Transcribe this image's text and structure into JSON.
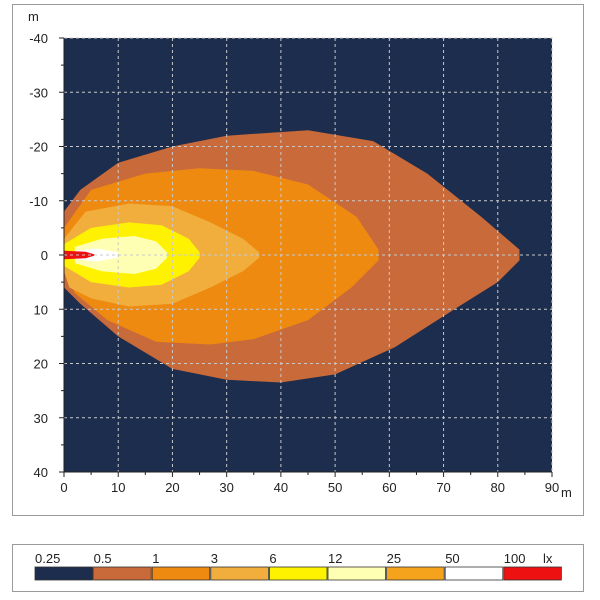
{
  "chart_data": {
    "type": "heatmap",
    "xlabel": "m",
    "ylabel": "m",
    "xlim": [
      0,
      90
    ],
    "ylim": [
      -40,
      40
    ],
    "x_ticks": [
      "0",
      "10",
      "20",
      "30",
      "40",
      "50",
      "60",
      "70",
      "80",
      "90"
    ],
    "y_ticks": [
      "-40",
      "-30",
      "-20",
      "-10",
      "0",
      "10",
      "20",
      "30",
      "40"
    ],
    "grid": true,
    "background_color": "#1c2d4d",
    "levels": [
      {
        "label": "0.25",
        "color": "#1c2d4d"
      },
      {
        "label": "0.5",
        "color": "#c96a3a"
      },
      {
        "label": "1",
        "color": "#ee8a10"
      },
      {
        "label": "3",
        "color": "#f1ae3c"
      },
      {
        "label": "6",
        "color": "#fff200"
      },
      {
        "label": "12",
        "color": "#ffffb4"
      },
      {
        "label": "25",
        "color": "#f5a21c"
      },
      {
        "label": "50",
        "color": "#ffffff"
      },
      {
        "label": "100",
        "color": "#ee1111"
      }
    ],
    "legend_unit": "lx",
    "isolines": [
      {
        "level": "0.5",
        "points": [
          [
            0,
            -8
          ],
          [
            3,
            -12
          ],
          [
            10,
            -17
          ],
          [
            20,
            -20
          ],
          [
            30,
            -22
          ],
          [
            45,
            -23
          ],
          [
            57,
            -21
          ],
          [
            67,
            -15
          ],
          [
            77,
            -7
          ],
          [
            84,
            -1
          ],
          [
            84,
            1
          ],
          [
            80,
            5
          ],
          [
            72,
            10
          ],
          [
            61,
            17
          ],
          [
            50,
            22
          ],
          [
            40,
            23.5
          ],
          [
            30,
            23
          ],
          [
            20,
            21
          ],
          [
            10,
            15
          ],
          [
            3,
            9
          ],
          [
            0,
            6
          ]
        ]
      },
      {
        "level": "1",
        "points": [
          [
            0,
            -5
          ],
          [
            5,
            -12
          ],
          [
            15,
            -15
          ],
          [
            25,
            -16
          ],
          [
            35,
            -15.5
          ],
          [
            45,
            -13
          ],
          [
            54,
            -7
          ],
          [
            58,
            -1
          ],
          [
            58,
            1
          ],
          [
            53,
            6
          ],
          [
            45,
            12
          ],
          [
            35,
            15.5
          ],
          [
            27,
            16.5
          ],
          [
            17,
            16
          ],
          [
            8,
            12
          ],
          [
            2,
            7
          ],
          [
            0,
            3
          ]
        ]
      },
      {
        "level": "3",
        "points": [
          [
            0,
            -3
          ],
          [
            4,
            -8
          ],
          [
            12,
            -9.5
          ],
          [
            20,
            -9
          ],
          [
            27,
            -6
          ],
          [
            33,
            -3
          ],
          [
            36,
            -0.5
          ],
          [
            36,
            0.5
          ],
          [
            33,
            3
          ],
          [
            27,
            6
          ],
          [
            20,
            9
          ],
          [
            12,
            9.5
          ],
          [
            5,
            8
          ],
          [
            1,
            6
          ],
          [
            0,
            3
          ]
        ]
      },
      {
        "level": "6",
        "points": [
          [
            0,
            -2
          ],
          [
            5,
            -5
          ],
          [
            12,
            -6
          ],
          [
            18,
            -5.5
          ],
          [
            23,
            -3
          ],
          [
            25,
            -0.5
          ],
          [
            25,
            0.5
          ],
          [
            23,
            3
          ],
          [
            18,
            5.5
          ],
          [
            12,
            6
          ],
          [
            5,
            5
          ],
          [
            0,
            2
          ]
        ]
      },
      {
        "level": "12",
        "points": [
          [
            2,
            -1.5
          ],
          [
            7,
            -3
          ],
          [
            13,
            -3.5
          ],
          [
            17,
            -2.5
          ],
          [
            19,
            -0.5
          ],
          [
            19,
            0.5
          ],
          [
            17,
            2.5
          ],
          [
            13,
            3.5
          ],
          [
            7,
            3
          ],
          [
            2,
            1.5
          ]
        ]
      },
      {
        "level": "50",
        "points": [
          [
            2,
            -0.8
          ],
          [
            6,
            -1.2
          ],
          [
            10,
            -0.5
          ],
          [
            10,
            0.5
          ],
          [
            6,
            1.2
          ],
          [
            2,
            0.8
          ]
        ]
      },
      {
        "level": "100",
        "points": [
          [
            0,
            -0.8
          ],
          [
            4,
            -0.6
          ],
          [
            6,
            0
          ],
          [
            4,
            0.6
          ],
          [
            0,
            0.8
          ]
        ]
      }
    ]
  }
}
